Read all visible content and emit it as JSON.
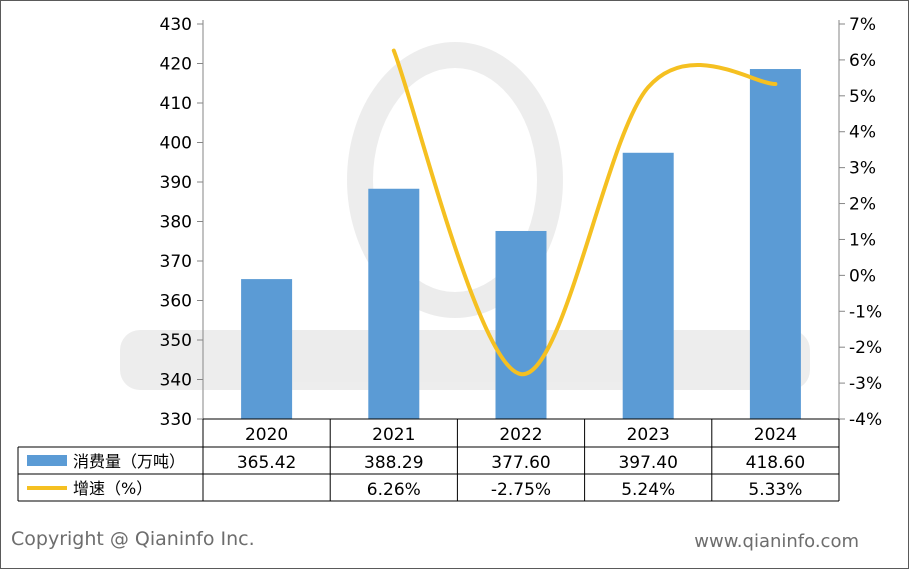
{
  "chart_data": {
    "type": "bar",
    "categories": [
      "2020",
      "2021",
      "2022",
      "2023",
      "2024"
    ],
    "series": [
      {
        "name": "消费量（万吨）",
        "type": "bar",
        "axis": "left",
        "color": "#5b9bd5",
        "values": [
          365.42,
          388.29,
          377.6,
          397.4,
          418.6
        ],
        "labels": [
          "365.42",
          "388.29",
          "377.60",
          "397.40",
          "418.60"
        ]
      },
      {
        "name": "增速（%）",
        "type": "line",
        "axis": "right",
        "color": "#f5c021",
        "values": [
          null,
          6.26,
          -2.75,
          5.24,
          5.33
        ],
        "labels": [
          "",
          "6.26%",
          "-2.75%",
          "5.24%",
          "5.33%"
        ]
      }
    ],
    "y_left": {
      "min": 330,
      "max": 430,
      "step": 10,
      "ticks": [
        "430",
        "420",
        "410",
        "400",
        "390",
        "380",
        "370",
        "360",
        "350",
        "340",
        "330"
      ]
    },
    "y_right": {
      "min": -4,
      "max": 7,
      "step": 1,
      "ticks": [
        "7%",
        "6%",
        "5%",
        "4%",
        "3%",
        "2%",
        "1%",
        "0%",
        "-1%",
        "-2%",
        "-3%",
        "-4%"
      ]
    },
    "data_table": true,
    "title": "",
    "xlabel": "",
    "ylabel": ""
  },
  "footer": {
    "copyright": "Copyright @ Qianinfo Inc.",
    "website": "www.qianinfo.com"
  }
}
